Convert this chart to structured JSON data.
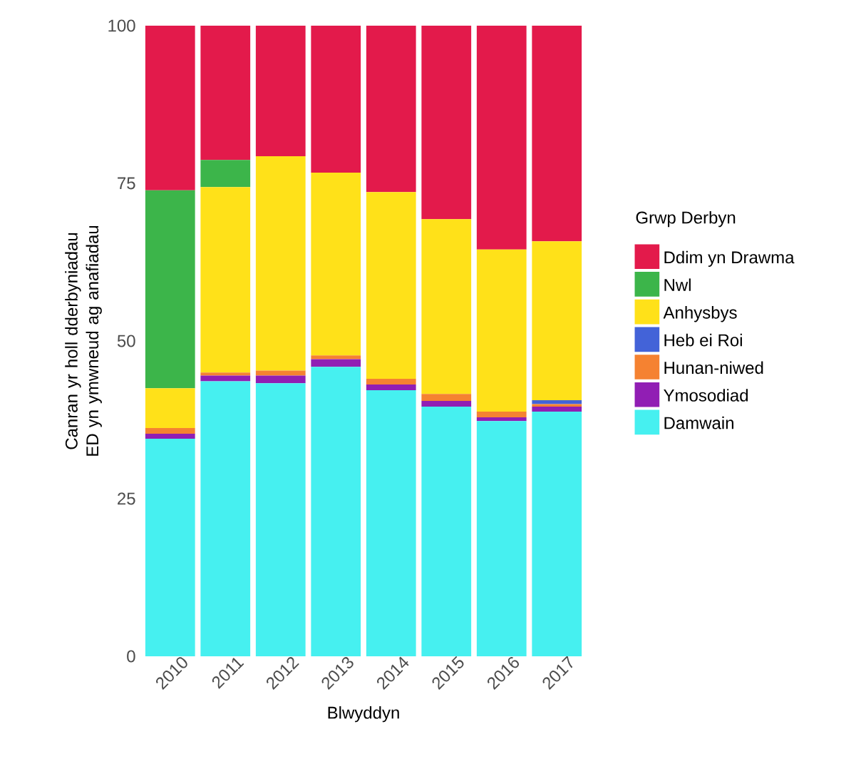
{
  "chart_data": {
    "type": "bar",
    "stacked": true,
    "xlabel": "Blwyddyn",
    "ylabel": "Canran yr holl dderbyniadau ED yn ymwneud ag anafiadau",
    "legend_title": "Grwp Derbyn",
    "legend": "right",
    "grid": false,
    "categories": [
      "2010",
      "2011",
      "2012",
      "2013",
      "2014",
      "2015",
      "2016",
      "2017"
    ],
    "ylim": [
      0,
      100
    ],
    "yticks": [
      0,
      25,
      50,
      75,
      100
    ],
    "series": [
      {
        "name": "Damwain",
        "color": "#46f0f0",
        "values": [
          34.5,
          43.6,
          43.3,
          45.9,
          42.2,
          39.6,
          37.3,
          38.8
        ]
      },
      {
        "name": "Ymosodiad",
        "color": "#911eb4",
        "values": [
          0.8,
          0.9,
          1.2,
          1.2,
          0.9,
          0.9,
          0.6,
          0.8
        ]
      },
      {
        "name": "Hunan-niwed",
        "color": "#f58231",
        "values": [
          0.9,
          0.5,
          0.8,
          0.6,
          0.9,
          1.1,
          0.9,
          0.4
        ]
      },
      {
        "name": "Heb ei Roi",
        "color": "#4363d8",
        "values": [
          0,
          0,
          0,
          0,
          0,
          0,
          0,
          0.6
        ]
      },
      {
        "name": "Anhysbys",
        "color": "#ffe119",
        "values": [
          6.3,
          29.4,
          34.0,
          29.0,
          29.6,
          27.7,
          25.7,
          25.2
        ]
      },
      {
        "name": "Nwl",
        "color": "#3cb54a",
        "values": [
          31.4,
          4.3,
          0,
          0,
          0,
          0,
          0,
          0
        ]
      },
      {
        "name": "Ddim yn Drawma",
        "color": "#e31a4b",
        "values": [
          26.1,
          21.3,
          20.7,
          23.3,
          26.4,
          30.7,
          35.5,
          34.2
        ]
      }
    ]
  }
}
